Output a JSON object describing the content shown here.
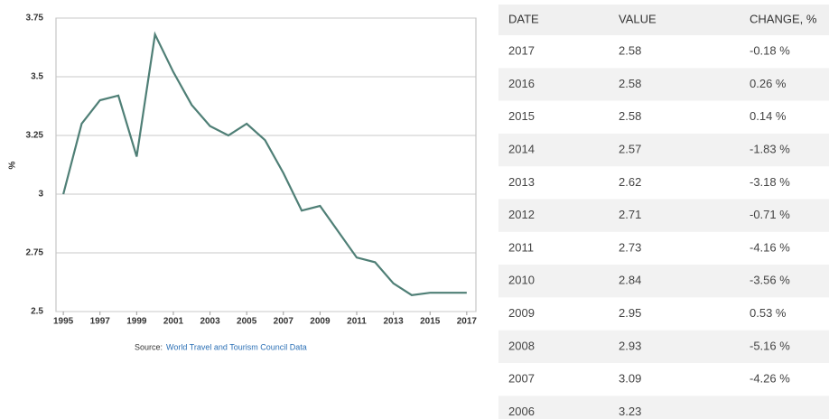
{
  "chart_data": {
    "type": "line",
    "y_label": "%",
    "x": [
      1995,
      1996,
      1997,
      1998,
      1999,
      2000,
      2001,
      2002,
      2003,
      2004,
      2005,
      2006,
      2007,
      2008,
      2009,
      2010,
      2011,
      2012,
      2013,
      2014,
      2015,
      2016,
      2017
    ],
    "values": [
      3.0,
      3.3,
      3.4,
      3.42,
      3.16,
      3.68,
      3.52,
      3.38,
      3.29,
      3.25,
      3.3,
      3.23,
      3.09,
      2.93,
      2.95,
      2.84,
      2.73,
      2.71,
      2.62,
      2.57,
      2.58,
      2.58,
      2.58
    ],
    "color": "#4f7f76",
    "xlim": [
      1994.6,
      2017.5
    ],
    "xticks": [
      1995,
      1997,
      1999,
      2001,
      2003,
      2005,
      2007,
      2009,
      2011,
      2013,
      2015,
      2017
    ],
    "ylim": [
      2.5,
      3.75
    ],
    "yticks": [
      2.5,
      2.75,
      3,
      3.25,
      3.5,
      3.75
    ],
    "grid": true
  },
  "source": {
    "label": "Source:",
    "link": "World Travel and Tourism Council Data"
  },
  "table": {
    "columns": [
      "DATE",
      "VALUE",
      "CHANGE, %"
    ],
    "rows": [
      [
        "2017",
        "2.58",
        "-0.18 %"
      ],
      [
        "2016",
        "2.58",
        "0.26 %"
      ],
      [
        "2015",
        "2.58",
        "0.14 %"
      ],
      [
        "2014",
        "2.57",
        "-1.83 %"
      ],
      [
        "2013",
        "2.62",
        "-3.18 %"
      ],
      [
        "2012",
        "2.71",
        "-0.71 %"
      ],
      [
        "2011",
        "2.73",
        "-4.16 %"
      ],
      [
        "2010",
        "2.84",
        "-3.56 %"
      ],
      [
        "2009",
        "2.95",
        "0.53 %"
      ],
      [
        "2008",
        "2.93",
        "-5.16 %"
      ],
      [
        "2007",
        "3.09",
        "-4.26 %"
      ],
      [
        "2006",
        "3.23"
      ]
    ]
  }
}
